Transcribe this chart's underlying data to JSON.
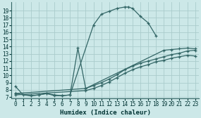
{
  "xlabel": "Humidex (Indice chaleur)",
  "bg_color": "#cce8e8",
  "grid_color": "#aacccc",
  "line_color": "#336666",
  "xlim": [
    -0.5,
    23.5
  ],
  "ylim": [
    6.8,
    20.2
  ],
  "xticks": [
    0,
    1,
    2,
    3,
    4,
    5,
    6,
    7,
    8,
    9,
    10,
    11,
    12,
    13,
    14,
    15,
    16,
    17,
    18,
    19,
    20,
    21,
    22,
    23
  ],
  "yticks": [
    7,
    8,
    9,
    10,
    11,
    12,
    13,
    14,
    15,
    16,
    17,
    18,
    19
  ],
  "series": [
    {
      "x": [
        0,
        1,
        2,
        3,
        4,
        5,
        6,
        7,
        10,
        11,
        12,
        13,
        14,
        14.5,
        15,
        16,
        17,
        18
      ],
      "y": [
        8.5,
        7.3,
        7.2,
        7.3,
        7.5,
        7.3,
        7.2,
        7.3,
        17.0,
        18.5,
        18.9,
        19.3,
        19.5,
        19.5,
        19.3,
        18.2,
        17.3,
        15.5
      ]
    },
    {
      "x": [
        0,
        2,
        3,
        4,
        5,
        6,
        7,
        8,
        9,
        19,
        20,
        21,
        22,
        23
      ],
      "y": [
        7.5,
        7.2,
        7.3,
        7.5,
        7.2,
        7.2,
        7.3,
        13.8,
        8.2,
        13.5,
        13.6,
        13.7,
        13.8,
        13.7
      ]
    },
    {
      "x": [
        0,
        9,
        10,
        11,
        12,
        13,
        14,
        15,
        16,
        17,
        18,
        19,
        20,
        21,
        22,
        23
      ],
      "y": [
        7.5,
        8.2,
        8.6,
        9.0,
        9.5,
        10.1,
        10.8,
        11.3,
        11.7,
        12.0,
        12.3,
        12.6,
        12.9,
        13.1,
        13.4,
        13.5
      ]
    },
    {
      "x": [
        0,
        9,
        10,
        11,
        12,
        13,
        14,
        15,
        16,
        17,
        18,
        19,
        20,
        21,
        22,
        23
      ],
      "y": [
        7.3,
        7.9,
        8.2,
        8.6,
        9.1,
        9.7,
        10.3,
        10.8,
        11.2,
        11.5,
        11.9,
        12.1,
        12.4,
        12.6,
        12.8,
        12.7
      ]
    }
  ]
}
